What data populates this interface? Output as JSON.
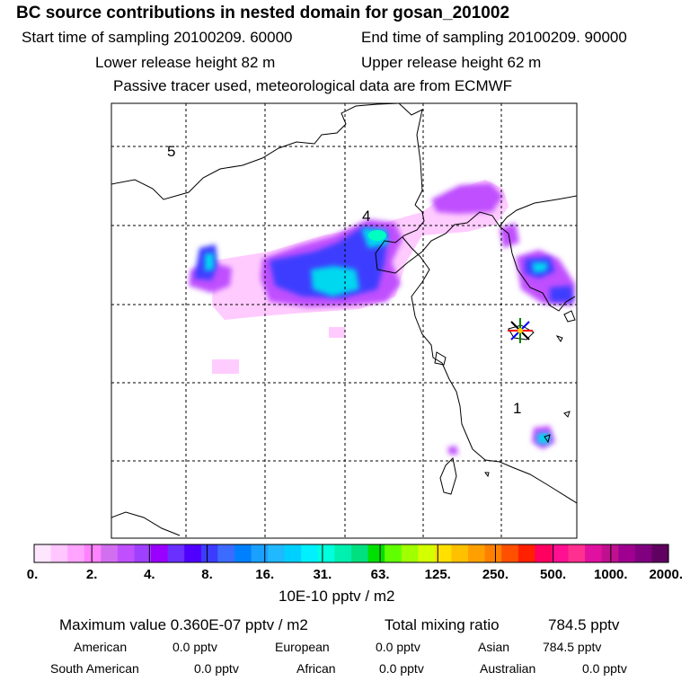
{
  "header": {
    "title": "BC  source contributions in nested domain for gosan_201002",
    "start_label": "Start time of sampling 20100209. 60000",
    "end_label": "End time of sampling 20100209. 90000",
    "lower_label": "Lower release height   82 m",
    "upper_label": "Upper release height   62 m",
    "tracer_note": "Passive tracer used, meteorological data are from ECMWF"
  },
  "map": {
    "grid_labels": [
      "5",
      "4",
      "1"
    ],
    "receptor_marker": "gosan-receptor-asterisk"
  },
  "colorbar": {
    "tick_labels": [
      "0.",
      "2.",
      "4.",
      "8.",
      "16.",
      "31.",
      "63.",
      "125.",
      "250.",
      "500.",
      "1000.",
      "2000."
    ],
    "colors": [
      "#ffe6ff",
      "#ffc6ff",
      "#ffa4ff",
      "#ff82ff",
      "#d26ef0",
      "#c050ff",
      "#a040ff",
      "#9a00ff",
      "#6a30ff",
      "#5000ff",
      "#3c3cff",
      "#3c6cff",
      "#0080ff",
      "#1aa0ff",
      "#20b8ff",
      "#00d0ff",
      "#00f0ff",
      "#00ffdc",
      "#00f0b0",
      "#00e080",
      "#00e000",
      "#60ff00",
      "#a0ff00",
      "#d4ff00",
      "#ffe000",
      "#ffc000",
      "#ffa000",
      "#ff8000",
      "#ff5000",
      "#ff2000",
      "#ff0060",
      "#ff1090",
      "#ff3090",
      "#e010a0",
      "#c01090",
      "#a00090",
      "#800080",
      "#600060"
    ],
    "unit_label": "10E-10 pptv / m2"
  },
  "footer": {
    "max_label": "Maximum value  0.360E-07 pptv / m2",
    "total_label": "Total mixing ratio",
    "total_value": "784.5 pptv",
    "sources": [
      {
        "name": "American",
        "value": "0.0 pptv"
      },
      {
        "name": "European",
        "value": "0.0 pptv"
      },
      {
        "name": "Asian",
        "value": "784.5 pptv"
      },
      {
        "name": "South American",
        "value": "0.0 pptv"
      },
      {
        "name": "African",
        "value": "0.0 pptv"
      },
      {
        "name": "Australian",
        "value": "0.0 pptv"
      }
    ]
  }
}
